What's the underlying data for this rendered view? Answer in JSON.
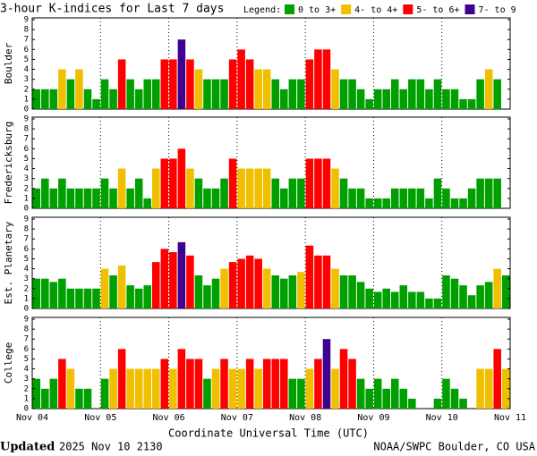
{
  "header": {
    "title": "3-hour K-indices for Last 7 days",
    "legend_title": "Legend:",
    "legend": [
      {
        "label": "0 to 3+",
        "color": "#00a000"
      },
      {
        "label": "4- to 4+",
        "color": "#f0c000"
      },
      {
        "label": "5- to 6+",
        "color": "#ff0000"
      },
      {
        "label": "7- to 9",
        "color": "#400090"
      }
    ]
  },
  "chart_data": [
    {
      "type": "bar",
      "ylabel": "Boulder",
      "ylim": [
        0,
        9
      ],
      "yticks": [
        0,
        1,
        2,
        3,
        4,
        5,
        6,
        7,
        8,
        9
      ],
      "values": [
        2,
        2,
        2,
        4,
        3,
        4,
        2,
        1,
        3,
        2,
        5,
        3,
        2,
        3,
        3,
        5,
        5,
        7,
        5,
        4,
        3,
        3,
        3,
        5,
        6,
        5,
        4,
        4,
        3,
        2,
        3,
        3,
        5,
        6,
        6,
        4,
        3,
        3,
        2,
        1,
        2,
        2,
        3,
        2,
        3,
        3,
        2,
        3,
        2,
        2,
        1,
        1,
        3,
        4,
        3,
        0
      ],
      "colors": [
        "#00a000",
        "#00a000",
        "#00a000",
        "#f0c000",
        "#00a000",
        "#f0c000",
        "#00a000",
        "#00a000",
        "#00a000",
        "#00a000",
        "#ff0000",
        "#00a000",
        "#00a000",
        "#00a000",
        "#00a000",
        "#ff0000",
        "#ff0000",
        "#400090",
        "#ff0000",
        "#f0c000",
        "#00a000",
        "#00a000",
        "#00a000",
        "#ff0000",
        "#ff0000",
        "#ff0000",
        "#f0c000",
        "#f0c000",
        "#00a000",
        "#00a000",
        "#00a000",
        "#00a000",
        "#ff0000",
        "#ff0000",
        "#ff0000",
        "#f0c000",
        "#00a000",
        "#00a000",
        "#00a000",
        "#00a000",
        "#00a000",
        "#00a000",
        "#00a000",
        "#00a000",
        "#00a000",
        "#00a000",
        "#00a000",
        "#00a000",
        "#00a000",
        "#00a000",
        "#00a000",
        "#00a000",
        "#00a000",
        "#f0c000",
        "#00a000",
        "#00a000"
      ]
    },
    {
      "type": "bar",
      "ylabel": "Fredericksburg",
      "ylim": [
        0,
        9
      ],
      "yticks": [
        0,
        1,
        2,
        3,
        4,
        5,
        6,
        7,
        8,
        9
      ],
      "values": [
        2,
        3,
        2,
        3,
        2,
        2,
        2,
        2,
        3,
        2,
        4,
        2,
        3,
        1,
        4,
        5,
        5,
        6,
        4,
        3,
        2,
        2,
        3,
        5,
        4,
        4,
        4,
        4,
        3,
        2,
        3,
        3,
        5,
        5,
        5,
        4,
        3,
        2,
        2,
        1,
        1,
        1,
        2,
        2,
        2,
        2,
        1,
        3,
        2,
        1,
        1,
        2,
        3,
        3,
        3,
        0
      ],
      "colors": [
        "#00a000",
        "#00a000",
        "#00a000",
        "#00a000",
        "#00a000",
        "#00a000",
        "#00a000",
        "#00a000",
        "#00a000",
        "#00a000",
        "#f0c000",
        "#00a000",
        "#00a000",
        "#00a000",
        "#f0c000",
        "#ff0000",
        "#ff0000",
        "#ff0000",
        "#f0c000",
        "#00a000",
        "#00a000",
        "#00a000",
        "#00a000",
        "#ff0000",
        "#f0c000",
        "#f0c000",
        "#f0c000",
        "#f0c000",
        "#00a000",
        "#00a000",
        "#00a000",
        "#00a000",
        "#ff0000",
        "#ff0000",
        "#ff0000",
        "#f0c000",
        "#00a000",
        "#00a000",
        "#00a000",
        "#00a000",
        "#00a000",
        "#00a000",
        "#00a000",
        "#00a000",
        "#00a000",
        "#00a000",
        "#00a000",
        "#00a000",
        "#00a000",
        "#00a000",
        "#00a000",
        "#00a000",
        "#00a000",
        "#00a000",
        "#00a000",
        "#00a000"
      ]
    },
    {
      "type": "bar",
      "ylabel": "Est. Planetary",
      "ylim": [
        0,
        9
      ],
      "yticks": [
        0,
        1,
        2,
        3,
        4,
        5,
        6,
        7,
        8,
        9
      ],
      "values": [
        3,
        3,
        2.67,
        3,
        2,
        2,
        2,
        2,
        4,
        3.33,
        4.33,
        2.33,
        2,
        2.33,
        4.67,
        6,
        5.67,
        6.67,
        5.33,
        3.33,
        2.33,
        3,
        4,
        4.67,
        5,
        5.33,
        5,
        4,
        3.33,
        3,
        3.33,
        3.67,
        6.33,
        5.33,
        5.33,
        4,
        3.33,
        3.33,
        2.67,
        2,
        1.67,
        2,
        1.67,
        2.33,
        1.67,
        1.67,
        1,
        1,
        3.33,
        3,
        2.33,
        1.33,
        2.33,
        2.67,
        4,
        3.33
      ],
      "colors": [
        "#00a000",
        "#00a000",
        "#00a000",
        "#00a000",
        "#00a000",
        "#00a000",
        "#00a000",
        "#00a000",
        "#f0c000",
        "#00a000",
        "#f0c000",
        "#00a000",
        "#00a000",
        "#00a000",
        "#ff0000",
        "#ff0000",
        "#ff0000",
        "#400090",
        "#ff0000",
        "#00a000",
        "#00a000",
        "#00a000",
        "#f0c000",
        "#ff0000",
        "#ff0000",
        "#ff0000",
        "#ff0000",
        "#f0c000",
        "#00a000",
        "#00a000",
        "#00a000",
        "#f0c000",
        "#ff0000",
        "#ff0000",
        "#ff0000",
        "#f0c000",
        "#00a000",
        "#00a000",
        "#00a000",
        "#00a000",
        "#00a000",
        "#00a000",
        "#00a000",
        "#00a000",
        "#00a000",
        "#00a000",
        "#00a000",
        "#00a000",
        "#00a000",
        "#00a000",
        "#00a000",
        "#00a000",
        "#00a000",
        "#00a000",
        "#f0c000",
        "#00a000"
      ]
    },
    {
      "type": "bar",
      "ylabel": "College",
      "ylim": [
        0,
        9
      ],
      "yticks": [
        0,
        1,
        2,
        3,
        4,
        5,
        6,
        7,
        8,
        9
      ],
      "values": [
        3,
        2,
        3,
        5,
        4,
        2,
        2,
        0,
        3,
        4,
        6,
        4,
        4,
        4,
        4,
        5,
        4,
        6,
        5,
        5,
        3,
        4,
        5,
        4,
        4,
        5,
        4,
        5,
        5,
        5,
        3,
        3,
        4,
        5,
        7,
        4,
        6,
        5,
        3,
        2,
        3,
        2,
        3,
        2,
        1,
        0,
        0,
        1,
        3,
        2,
        1,
        0,
        4,
        4,
        6,
        4
      ],
      "colors": [
        "#00a000",
        "#00a000",
        "#00a000",
        "#ff0000",
        "#f0c000",
        "#00a000",
        "#00a000",
        "#00a000",
        "#00a000",
        "#f0c000",
        "#ff0000",
        "#f0c000",
        "#f0c000",
        "#f0c000",
        "#f0c000",
        "#ff0000",
        "#f0c000",
        "#ff0000",
        "#ff0000",
        "#ff0000",
        "#00a000",
        "#f0c000",
        "#ff0000",
        "#f0c000",
        "#f0c000",
        "#ff0000",
        "#f0c000",
        "#ff0000",
        "#ff0000",
        "#ff0000",
        "#00a000",
        "#00a000",
        "#f0c000",
        "#ff0000",
        "#400090",
        "#f0c000",
        "#ff0000",
        "#ff0000",
        "#00a000",
        "#00a000",
        "#00a000",
        "#00a000",
        "#00a000",
        "#00a000",
        "#00a000",
        "#00a000",
        "#00a000",
        "#00a000",
        "#00a000",
        "#00a000",
        "#00a000",
        "#00a000",
        "#f0c000",
        "#f0c000",
        "#ff0000",
        "#f0c000"
      ]
    }
  ],
  "xaxis": {
    "ticks": [
      "Nov 04",
      "Nov 05",
      "Nov 06",
      "Nov 07",
      "Nov 08",
      "Nov 09",
      "Nov 10",
      "Nov 11"
    ],
    "label": "Coordinate Universal Time (UTC)"
  },
  "footer": {
    "updated_label": "Updated",
    "updated": "2025 Nov 10 2130",
    "credit": "NOAA/SWPC Boulder, CO USA"
  }
}
